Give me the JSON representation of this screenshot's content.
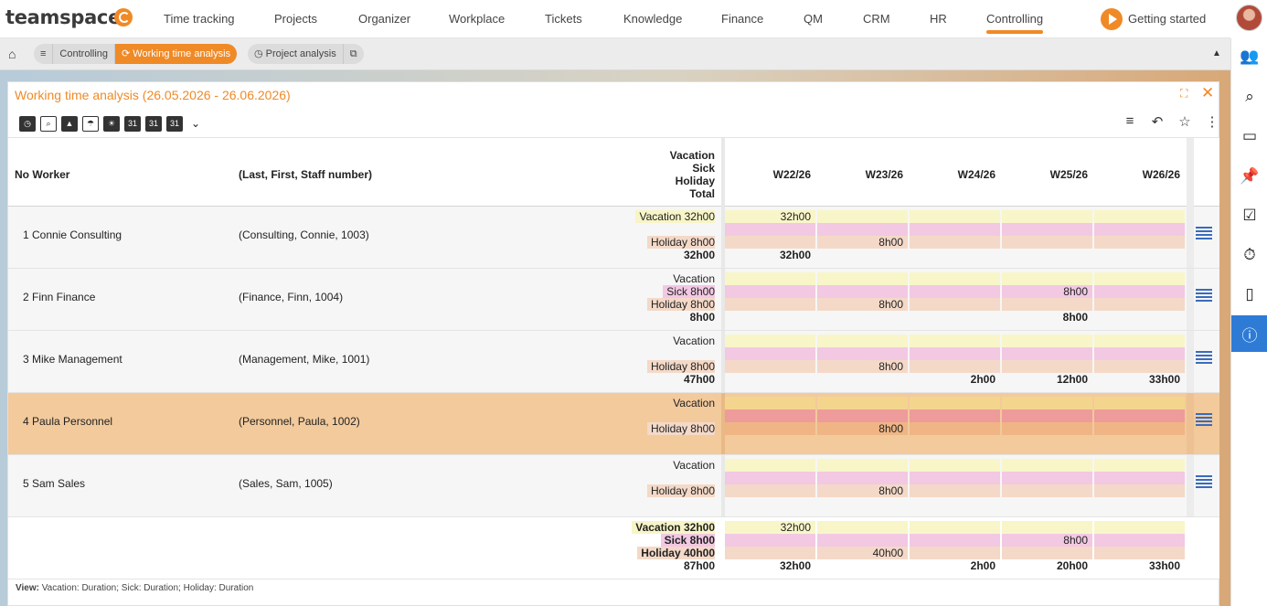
{
  "nav": {
    "logo": "teamspace",
    "items": [
      "Time tracking",
      "Projects",
      "Organizer",
      "Workplace",
      "Tickets",
      "Knowledge",
      "Finance",
      "QM",
      "CRM",
      "HR",
      "Controlling"
    ],
    "getting_started": "Getting started"
  },
  "breadcrumb": {
    "menu_icon": "≡",
    "controlling": "Controlling",
    "active": "Working time analysis",
    "project_analysis": "Project analysis"
  },
  "panel": {
    "title": "Working time analysis (26.05.2026 - 26.06.2026)"
  },
  "table": {
    "headers": {
      "no_worker": "No Worker",
      "info": "(Last, First, Staff number)",
      "legend": [
        "Vacation",
        "Sick",
        "Holiday",
        "Total"
      ]
    },
    "weeks": [
      "W22/26",
      "W23/26",
      "W24/26",
      "W25/26",
      "W26/26"
    ],
    "rows": [
      {
        "name": "1 Connie Consulting",
        "info": "(Consulting, Connie, 1003)",
        "vacation": "Vacation 32h00",
        "sick": "",
        "holiday": "Holiday 8h00",
        "total": "32h00",
        "cells": [
          {
            "v": "32h00",
            "s": "",
            "h": "",
            "t": "32h00"
          },
          {
            "v": "",
            "s": "",
            "h": "8h00",
            "t": ""
          },
          {
            "v": "",
            "s": "",
            "h": "",
            "t": ""
          },
          {
            "v": "",
            "s": "",
            "h": "",
            "t": ""
          },
          {
            "v": "",
            "s": "",
            "h": "",
            "t": ""
          }
        ]
      },
      {
        "name": "2 Finn Finance",
        "info": "(Finance, Finn, 1004)",
        "vacation": "Vacation",
        "sick": "Sick 8h00",
        "holiday": "Holiday 8h00",
        "total": "8h00",
        "cells": [
          {
            "v": "",
            "s": "",
            "h": "",
            "t": ""
          },
          {
            "v": "",
            "s": "",
            "h": "8h00",
            "t": ""
          },
          {
            "v": "",
            "s": "",
            "h": "",
            "t": ""
          },
          {
            "v": "",
            "s": "8h00",
            "h": "",
            "t": "8h00"
          },
          {
            "v": "",
            "s": "",
            "h": "",
            "t": ""
          }
        ]
      },
      {
        "name": "3 Mike Management",
        "info": "(Management, Mike, 1001)",
        "vacation": "Vacation",
        "sick": "",
        "holiday": "Holiday 8h00",
        "total": "47h00",
        "cells": [
          {
            "v": "",
            "s": "",
            "h": "",
            "t": ""
          },
          {
            "v": "",
            "s": "",
            "h": "8h00",
            "t": ""
          },
          {
            "v": "",
            "s": "",
            "h": "",
            "t": "2h00"
          },
          {
            "v": "",
            "s": "",
            "h": "",
            "t": "12h00"
          },
          {
            "v": "",
            "s": "",
            "h": "",
            "t": "33h00"
          }
        ]
      },
      {
        "name": "4 Paula Personnel",
        "info": "(Personnel, Paula, 1002)",
        "vacation": "Vacation",
        "sick": "",
        "holiday": "Holiday 8h00",
        "total": "",
        "selected": true,
        "cells": [
          {
            "v": "",
            "s": "",
            "h": "",
            "t": ""
          },
          {
            "v": "",
            "s": "",
            "h": "8h00",
            "t": ""
          },
          {
            "v": "",
            "s": "",
            "h": "",
            "t": ""
          },
          {
            "v": "",
            "s": "",
            "h": "",
            "t": ""
          },
          {
            "v": "",
            "s": "",
            "h": "",
            "t": ""
          }
        ]
      },
      {
        "name": "5 Sam Sales",
        "info": "(Sales, Sam, 1005)",
        "vacation": "Vacation",
        "sick": "",
        "holiday": "Holiday 8h00",
        "total": "",
        "cells": [
          {
            "v": "",
            "s": "",
            "h": "",
            "t": ""
          },
          {
            "v": "",
            "s": "",
            "h": "8h00",
            "t": ""
          },
          {
            "v": "",
            "s": "",
            "h": "",
            "t": ""
          },
          {
            "v": "",
            "s": "",
            "h": "",
            "t": ""
          },
          {
            "v": "",
            "s": "",
            "h": "",
            "t": ""
          }
        ]
      }
    ],
    "summary": {
      "vacation": "Vacation 32h00",
      "sick": "Sick 8h00",
      "holiday": "Holiday 40h00",
      "total": "87h00",
      "cells": [
        {
          "v": "32h00",
          "s": "",
          "h": "",
          "t": "32h00"
        },
        {
          "v": "",
          "s": "",
          "h": "40h00",
          "t": ""
        },
        {
          "v": "",
          "s": "",
          "h": "",
          "t": "2h00"
        },
        {
          "v": "",
          "s": "8h00",
          "h": "",
          "t": "20h00"
        },
        {
          "v": "",
          "s": "",
          "h": "",
          "t": "33h00"
        }
      ]
    }
  },
  "footer": {
    "view_label": "View:",
    "view_text": "Vacation: Duration; Sick: Duration; Holiday: Duration"
  }
}
